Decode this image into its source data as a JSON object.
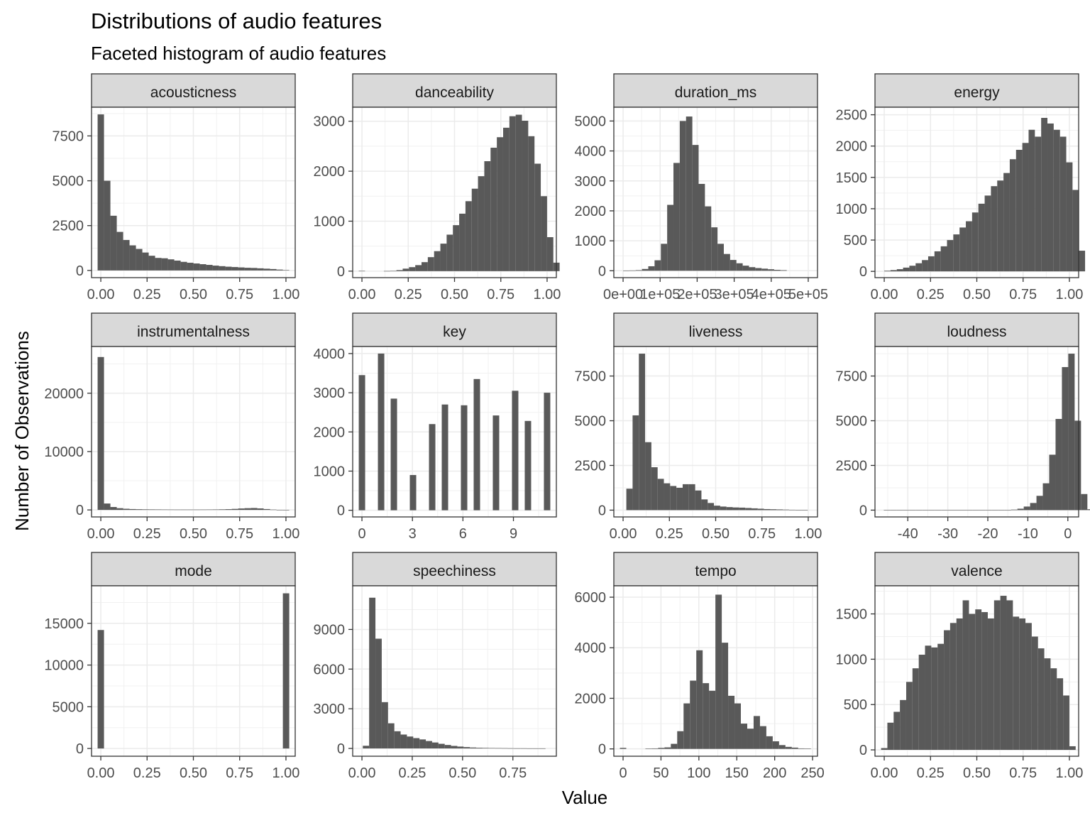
{
  "chart_data": {
    "type": "bar",
    "title": "Distributions of audio features",
    "subtitle": "Faceted histogram of audio features",
    "xlabel": "Value",
    "ylabel": "Number of Observations",
    "grid": true,
    "bar_color": "#595959",
    "strip_color": "#d9d9d9",
    "panels": [
      {
        "name": "acousticness",
        "xlim": [
          -0.05,
          1.05
        ],
        "ylim": [
          -400,
          9100
        ],
        "xticks": [
          0,
          0.25,
          0.5,
          0.75,
          1.0
        ],
        "xtick_labels": [
          "0.00",
          "0.25",
          "0.50",
          "0.75",
          "1.00"
        ],
        "yticks": [
          0,
          2500,
          5000,
          7500
        ],
        "ytick_labels": [
          "0",
          "2500",
          "5000",
          "7500"
        ],
        "bin_start": -0.0172,
        "bin_width": 0.0345,
        "counts": [
          8700,
          5000,
          3050,
          2150,
          1700,
          1400,
          1200,
          1000,
          820,
          700,
          680,
          620,
          550,
          480,
          430,
          390,
          350,
          310,
          270,
          240,
          210,
          190,
          170,
          150,
          140,
          120,
          100,
          80,
          50,
          20
        ]
      },
      {
        "name": "danceability",
        "xlim": [
          -0.05,
          1.05
        ],
        "ylim": [
          -130,
          3280
        ],
        "xticks": [
          0,
          0.25,
          0.5,
          0.75,
          1.0
        ],
        "xtick_labels": [
          "0.00",
          "0.25",
          "0.50",
          "0.75",
          "1.00"
        ],
        "yticks": [
          0,
          1000,
          2000,
          3000
        ],
        "ytick_labels": [
          "0",
          "1000",
          "2000",
          "3000"
        ],
        "bin_start": -0.0172,
        "bin_width": 0.0339,
        "counts": [
          5,
          0,
          0,
          0,
          3,
          5,
          20,
          50,
          80,
          120,
          180,
          280,
          400,
          550,
          730,
          920,
          1150,
          1400,
          1650,
          1900,
          2200,
          2470,
          2680,
          2870,
          3100,
          3130,
          3010,
          2700,
          2150,
          1500,
          680,
          170
        ]
      },
      {
        "name": "duration_ms",
        "xlim": [
          -25000,
          525000
        ],
        "ylim": [
          -230,
          5460
        ],
        "xticks": [
          0,
          100000,
          200000,
          300000,
          400000,
          500000
        ],
        "xtick_labels": [
          "0e+00",
          "1e+05",
          "2e+05",
          "3e+05",
          "4e+05",
          "5e+05"
        ],
        "yticks": [
          0,
          1000,
          2000,
          3000,
          4000,
          5000
        ],
        "ytick_labels": [
          "0",
          "1000",
          "2000",
          "3000",
          "4000",
          "5000"
        ],
        "bin_start": 0,
        "bin_width": 17000,
        "counts": [
          5,
          10,
          20,
          60,
          150,
          350,
          900,
          2200,
          3600,
          5000,
          5150,
          4200,
          2900,
          2150,
          1450,
          900,
          560,
          360,
          250,
          170,
          120,
          90,
          70,
          50,
          30,
          20
        ]
      },
      {
        "name": "energy",
        "xlim": [
          -0.05,
          1.05
        ],
        "ylim": [
          -100,
          2620
        ],
        "xticks": [
          0,
          0.25,
          0.5,
          0.75,
          1.0
        ],
        "xtick_labels": [
          "0.00",
          "0.25",
          "0.50",
          "0.75",
          "1.00"
        ],
        "yticks": [
          0,
          500,
          1000,
          1500,
          2000,
          2500
        ],
        "ytick_labels": [
          "0",
          "500",
          "1000",
          "1500",
          "2000",
          "2500"
        ],
        "bin_start": 0.0,
        "bin_width": 0.0339,
        "counts": [
          10,
          20,
          35,
          60,
          90,
          130,
          180,
          240,
          320,
          400,
          500,
          590,
          700,
          800,
          940,
          1080,
          1210,
          1360,
          1450,
          1570,
          1790,
          1940,
          2050,
          2260,
          2150,
          2450,
          2360,
          2260,
          2150,
          1740,
          1300,
          330
        ]
      },
      {
        "name": "instrumentalness",
        "xlim": [
          -0.05,
          1.05
        ],
        "ylim": [
          -1200,
          28000
        ],
        "xticks": [
          0,
          0.25,
          0.5,
          0.75,
          1.0
        ],
        "xtick_labels": [
          "0.00",
          "0.25",
          "0.50",
          "0.75",
          "1.00"
        ],
        "yticks": [
          0,
          10000,
          20000
        ],
        "ytick_labels": [
          "0",
          "10000",
          "20000"
        ],
        "bin_start": -0.0172,
        "bin_width": 0.0345,
        "counts": [
          26200,
          1100,
          500,
          300,
          200,
          150,
          120,
          100,
          90,
          80,
          70,
          65,
          60,
          60,
          60,
          60,
          65,
          70,
          80,
          100,
          130,
          180,
          250,
          300,
          330,
          260,
          150,
          60,
          20,
          5
        ]
      },
      {
        "name": "key",
        "xlim": [
          -0.55,
          11.55
        ],
        "ylim": [
          -170,
          4180
        ],
        "xticks": [
          0,
          3,
          6,
          9
        ],
        "xtick_labels": [
          "0",
          "3",
          "6",
          "9"
        ],
        "yticks": [
          0,
          1000,
          2000,
          3000,
          4000
        ],
        "ytick_labels": [
          "0",
          "1000",
          "2000",
          "3000",
          "4000"
        ],
        "bin_start": -0.1897,
        "bin_width": 0.3793,
        "counts": [
          3450,
          0,
          0,
          4000,
          0,
          2850,
          0,
          0,
          900,
          0,
          0,
          2200,
          0,
          2700,
          0,
          0,
          2680,
          0,
          3350,
          0,
          0,
          2420,
          0,
          0,
          3050,
          0,
          2280,
          0,
          0,
          3000
        ]
      },
      {
        "name": "liveness",
        "xlim": [
          -0.05,
          1.05
        ],
        "ylim": [
          -380,
          9150
        ],
        "xticks": [
          0,
          0.25,
          0.5,
          0.75,
          1.0
        ],
        "xtick_labels": [
          "0.00",
          "0.25",
          "0.50",
          "0.75",
          "1.00"
        ],
        "yticks": [
          0,
          2500,
          5000,
          7500
        ],
        "ytick_labels": [
          "0",
          "2500",
          "5000",
          "7500"
        ],
        "bin_start": 0.0175,
        "bin_width": 0.0338,
        "counts": [
          1200,
          5300,
          8750,
          3800,
          2400,
          1750,
          1500,
          1350,
          1250,
          1450,
          1450,
          1100,
          600,
          400,
          250,
          200,
          170,
          150,
          140,
          120,
          100,
          80,
          60,
          50,
          40,
          30,
          20,
          15,
          10
        ]
      },
      {
        "name": "loudness",
        "xlim": [
          -48.2,
          2.7
        ],
        "ylim": [
          -380,
          9150
        ],
        "xticks": [
          -40,
          -30,
          -20,
          -10,
          0
        ],
        "xtick_labels": [
          "-40",
          "-30",
          "-20",
          "-10",
          "0"
        ],
        "yticks": [
          0,
          2500,
          5000,
          7500
        ],
        "ytick_labels": [
          "0",
          "2500",
          "5000",
          "7500"
        ],
        "bin_start": -46.0,
        "bin_width": 1.59,
        "counts": [
          2,
          2,
          2,
          2,
          2,
          2,
          2,
          2,
          2,
          2,
          2,
          2,
          2,
          2,
          2,
          2,
          2,
          3,
          5,
          10,
          30,
          80,
          200,
          400,
          800,
          1500,
          3100,
          5100,
          8000,
          8750,
          5000,
          900,
          50
        ]
      },
      {
        "name": "mode",
        "xlim": [
          -0.05,
          1.05
        ],
        "ylim": [
          -930,
          19500
        ],
        "xticks": [
          0,
          0.25,
          0.5,
          0.75,
          1.0
        ],
        "xtick_labels": [
          "0.00",
          "0.25",
          "0.50",
          "0.75",
          "1.00"
        ],
        "yticks": [
          0,
          5000,
          10000,
          15000
        ],
        "ytick_labels": [
          "0",
          "5000",
          "10000",
          "15000"
        ],
        "bin_start": -0.0172,
        "bin_width": 0.0345,
        "counts": [
          14200,
          0,
          0,
          0,
          0,
          0,
          0,
          0,
          0,
          0,
          0,
          0,
          0,
          0,
          0,
          0,
          0,
          0,
          0,
          0,
          0,
          0,
          0,
          0,
          0,
          0,
          0,
          0,
          0,
          18600
        ]
      },
      {
        "name": "speechiness",
        "xlim": [
          -0.046,
          0.966
        ],
        "ylim": [
          -590,
          12300
        ],
        "xticks": [
          0,
          0.25,
          0.5,
          0.75
        ],
        "xtick_labels": [
          "0.00",
          "0.25",
          "0.50",
          "0.75"
        ],
        "yticks": [
          0,
          3000,
          6000,
          9000
        ],
        "ytick_labels": [
          "0",
          "3000",
          "6000",
          "9000"
        ],
        "bin_start": 0.0044,
        "bin_width": 0.0313,
        "counts": [
          200,
          11400,
          8300,
          3500,
          1900,
          1300,
          1050,
          900,
          780,
          680,
          560,
          450,
          350,
          260,
          190,
          140,
          100,
          70,
          50,
          40,
          30,
          25,
          20,
          15,
          10,
          10,
          5,
          5,
          5
        ]
      },
      {
        "name": "tempo",
        "xlim": [
          -12.2,
          256.5
        ],
        "ylim": [
          -290,
          6450
        ],
        "xticks": [
          0,
          50,
          100,
          150,
          200,
          250
        ],
        "xtick_labels": [
          "0",
          "50",
          "100",
          "150",
          "200",
          "250"
        ],
        "yticks": [
          0,
          2000,
          4000,
          6000
        ],
        "ytick_labels": [
          "0",
          "2000",
          "4000",
          "6000"
        ],
        "bin_start": -4.2,
        "bin_width": 8.4,
        "counts": [
          40,
          0,
          0,
          0,
          10,
          20,
          40,
          60,
          200,
          700,
          1800,
          2700,
          3900,
          2600,
          2300,
          6100,
          4200,
          2100,
          1800,
          1000,
          800,
          1300,
          900,
          500,
          300,
          150,
          80,
          50,
          20,
          10
        ]
      },
      {
        "name": "valence",
        "xlim": [
          -0.05,
          1.05
        ],
        "ylim": [
          -70,
          1810
        ],
        "xticks": [
          0,
          0.25,
          0.5,
          0.75,
          1.0
        ],
        "xtick_labels": [
          "0.00",
          "0.25",
          "0.50",
          "0.75",
          "1.00"
        ],
        "yticks": [
          0,
          500,
          1000,
          1500
        ],
        "ytick_labels": [
          "0",
          "500",
          "1000",
          "1500"
        ],
        "bin_start": -0.017,
        "bin_width": 0.0339,
        "counts": [
          20,
          300,
          420,
          550,
          750,
          900,
          1050,
          1150,
          1130,
          1170,
          1320,
          1400,
          1450,
          1650,
          1500,
          1550,
          1520,
          1450,
          1650,
          1700,
          1650,
          1470,
          1450,
          1400,
          1250,
          1120,
          1010,
          900,
          790,
          600,
          40
        ]
      }
    ]
  }
}
